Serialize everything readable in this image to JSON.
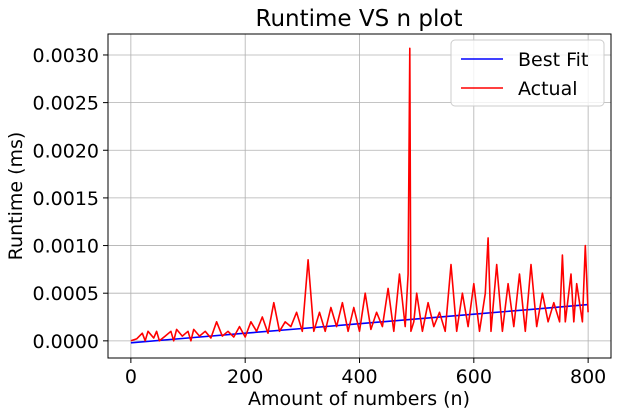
{
  "chart_data": {
    "type": "line",
    "title": "Runtime VS n plot",
    "xlabel": "Amount of numbers (n)",
    "ylabel": "Runtime (ms)",
    "xlim": [
      -40,
      840
    ],
    "ylim": [
      -0.00018,
      0.00322
    ],
    "x_ticks": [
      0,
      200,
      400,
      600,
      800
    ],
    "x_tick_labels": [
      "0",
      "200",
      "400",
      "600",
      "800"
    ],
    "y_ticks": [
      0,
      0.0005,
      0.001,
      0.0015,
      0.002,
      0.0025,
      0.003
    ],
    "y_tick_labels": [
      "0.0000",
      "0.0005",
      "0.0010",
      "0.0015",
      "0.0020",
      "0.0025",
      "0.0030"
    ],
    "grid": true,
    "legend": "top-right",
    "series": [
      {
        "name": "Best Fit",
        "color": "#0000ff",
        "x": [
          0,
          100,
          200,
          300,
          400,
          500,
          600,
          700,
          800
        ],
        "y": [
          -2e-05,
          3e-05,
          8e-05,
          0.00013,
          0.00018,
          0.00023,
          0.00028,
          0.00033,
          0.00038
        ]
      },
      {
        "name": "Actual",
        "color": "#ff0000",
        "x": [
          0,
          10,
          20,
          25,
          30,
          40,
          45,
          50,
          60,
          70,
          75,
          80,
          90,
          100,
          105,
          110,
          120,
          130,
          140,
          150,
          160,
          170,
          180,
          190,
          200,
          210,
          220,
          230,
          240,
          250,
          260,
          270,
          280,
          290,
          300,
          310,
          320,
          330,
          340,
          350,
          360,
          370,
          380,
          390,
          400,
          410,
          420,
          430,
          440,
          450,
          460,
          470,
          480,
          485,
          488,
          490,
          495,
          500,
          510,
          520,
          530,
          540,
          550,
          560,
          570,
          580,
          590,
          600,
          610,
          620,
          625,
          630,
          640,
          650,
          660,
          670,
          680,
          690,
          700,
          710,
          720,
          730,
          740,
          750,
          755,
          760,
          770,
          775,
          780,
          790,
          795,
          800
        ],
        "y": [
          0,
          2e-05,
          8e-05,
          0,
          0.0001,
          3e-05,
          0.0001,
          0,
          5e-05,
          0.0001,
          0,
          0.00012,
          5e-05,
          0.0001,
          0,
          0.00012,
          5e-05,
          0.0001,
          3e-05,
          0.0002,
          5e-05,
          0.0001,
          4e-05,
          0.00015,
          4e-05,
          0.0002,
          0.0001,
          0.00025,
          8e-05,
          0.0004,
          0.0001,
          0.0002,
          0.00015,
          0.0003,
          0.0001,
          0.00085,
          0.0001,
          0.0003,
          0.0001,
          0.00035,
          0.00015,
          0.0004,
          0.0001,
          0.00035,
          0.0001,
          0.0005,
          0.00012,
          0.0003,
          0.00015,
          0.00055,
          0.0001,
          0.0007,
          0.00015,
          0.0007,
          0.00307,
          0.0001,
          0.0002,
          0.0005,
          0.0001,
          0.0004,
          0.00015,
          0.0003,
          0.0001,
          0.0008,
          0.0001,
          0.0005,
          0.00015,
          0.0006,
          0.0001,
          0.0005,
          0.00108,
          0.0001,
          0.0008,
          0.0001,
          0.0006,
          0.00015,
          0.0007,
          0.0001,
          0.0008,
          0.00015,
          0.0005,
          0.0002,
          0.0004,
          0.0002,
          0.0009,
          0.0002,
          0.0007,
          0.0002,
          0.0006,
          0.0002,
          0.001,
          0.0003
        ]
      }
    ]
  }
}
